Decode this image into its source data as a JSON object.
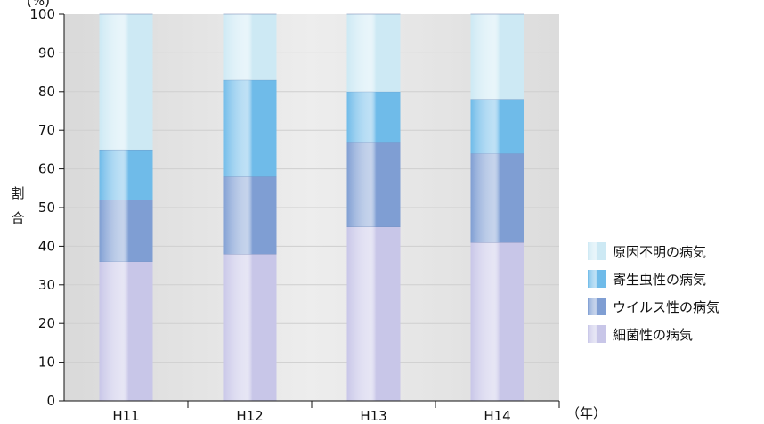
{
  "chart_data": {
    "type": "bar",
    "stacked": true,
    "categories": [
      "H11",
      "H12",
      "H13",
      "H14"
    ],
    "series": [
      {
        "name": "細菌性の病気",
        "values": [
          36,
          38,
          45,
          41
        ],
        "color": "#c8c6e8"
      },
      {
        "name": "ウイルス性の病気",
        "values": [
          16,
          20,
          22,
          23
        ],
        "color": "#7f9ed3"
      },
      {
        "name": "寄生虫性の病気",
        "values": [
          13,
          25,
          13,
          14
        ],
        "color": "#6fbbe9"
      },
      {
        "name": "原因不明の病気",
        "values": [
          35,
          17,
          20,
          22
        ],
        "color": "#cde9f4"
      }
    ],
    "legend_order": [
      "原因不明の病気",
      "寄生虫性の病気",
      "ウイルス性の病気",
      "細菌性の病気"
    ],
    "ylabel": "割合",
    "y_unit": "(%)",
    "x_unit": "（年）",
    "ylim": [
      0,
      100
    ],
    "y_ticks": [
      0,
      10,
      20,
      30,
      40,
      50,
      60,
      70,
      80,
      90,
      100
    ],
    "legend_position": "right",
    "plot_background": "#e6e6e6"
  }
}
